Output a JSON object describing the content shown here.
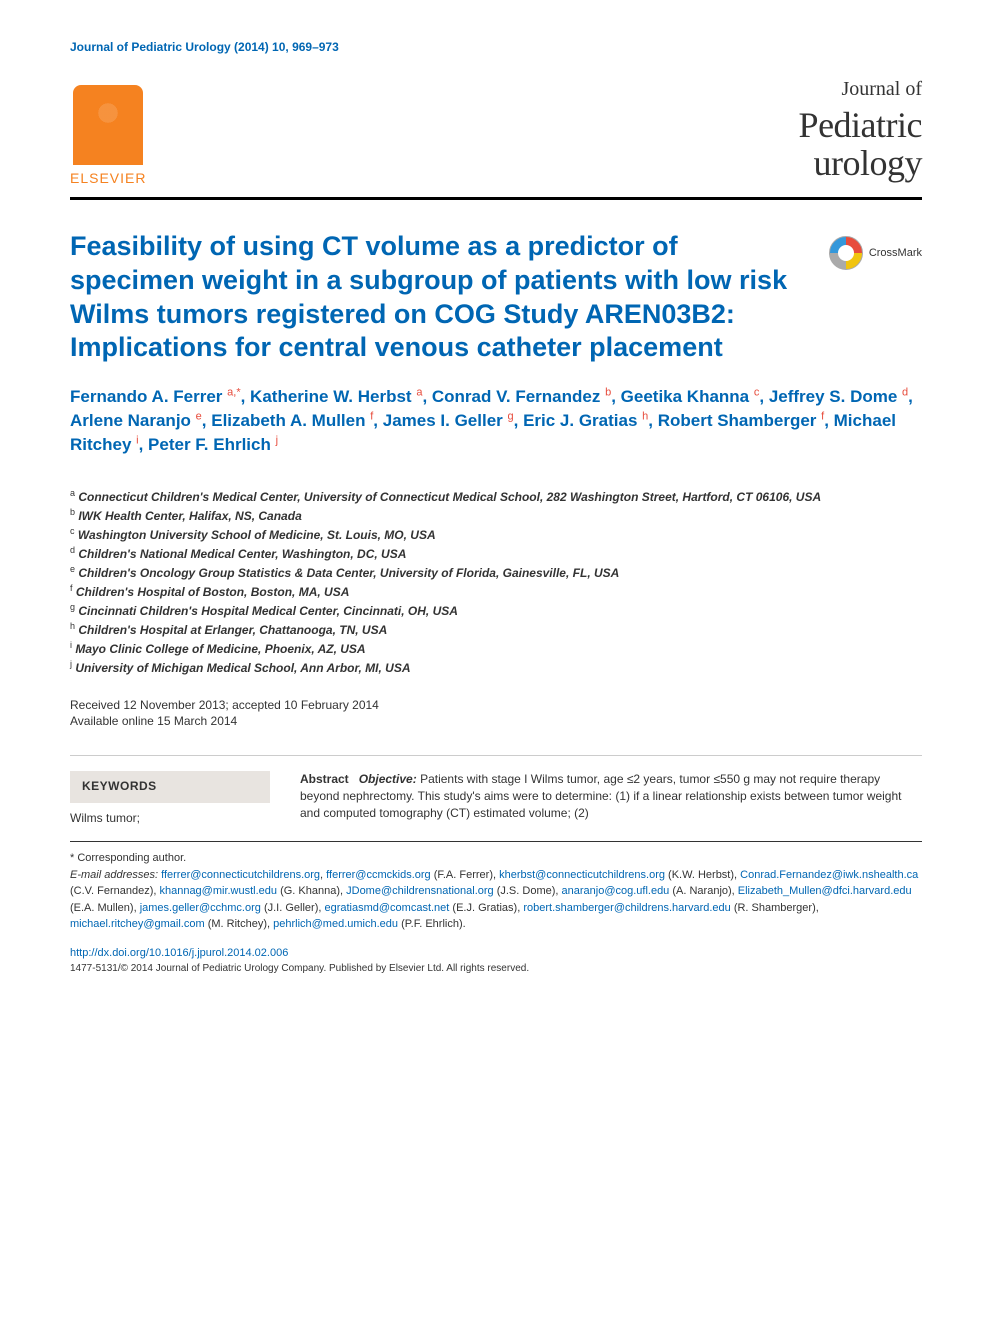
{
  "journal_ref": "Journal of Pediatric Urology (2014) 10, 969–973",
  "publisher": "ELSEVIER",
  "journal_title": {
    "line1": "Journal of",
    "line2": "Pediatric",
    "line3": "urology"
  },
  "crossmark": "CrossMark",
  "title": "Feasibility of using CT volume as a predictor of specimen weight in a subgroup of patients with low risk Wilms tumors registered on COG Study AREN03B2: Implications for central venous catheter placement",
  "authors_html": "Fernando A. Ferrer <sup>a,</sup><sup class=\"star\">*</sup>, Katherine W. Herbst <sup>a</sup>, Conrad V. Fernandez <sup>b</sup>, Geetika Khanna <sup>c</sup>, Jeffrey S. Dome <sup>d</sup>, Arlene Naranjo <sup>e</sup>, Elizabeth A. Mullen <sup>f</sup>, James I. Geller <sup>g</sup>, Eric J. Gratias <sup>h</sup>, Robert Shamberger <sup>f</sup>, Michael Ritchey <sup>i</sup>, Peter F. Ehrlich <sup>j</sup>",
  "affiliations": [
    {
      "key": "a",
      "text": "Connecticut Children's Medical Center, University of Connecticut Medical School, 282 Washington Street, Hartford, CT 06106, USA"
    },
    {
      "key": "b",
      "text": "IWK Health Center, Halifax, NS, Canada"
    },
    {
      "key": "c",
      "text": "Washington University School of Medicine, St. Louis, MO, USA"
    },
    {
      "key": "d",
      "text": "Children's National Medical Center, Washington, DC, USA"
    },
    {
      "key": "e",
      "text": "Children's Oncology Group Statistics & Data Center, University of Florida, Gainesville, FL, USA"
    },
    {
      "key": "f",
      "text": "Children's Hospital of Boston, Boston, MA, USA"
    },
    {
      "key": "g",
      "text": "Cincinnati Children's Hospital Medical Center, Cincinnati, OH, USA"
    },
    {
      "key": "h",
      "text": "Children's Hospital at Erlanger, Chattanooga, TN, USA"
    },
    {
      "key": "i",
      "text": "Mayo Clinic College of Medicine, Phoenix, AZ, USA"
    },
    {
      "key": "j",
      "text": "University of Michigan Medical School, Ann Arbor, MI, USA"
    }
  ],
  "dates": {
    "received_accepted": "Received 12 November 2013; accepted 10 February 2014",
    "online": "Available online 15 March 2014"
  },
  "keywords": {
    "header": "KEYWORDS",
    "body": "Wilms tumor;"
  },
  "abstract": {
    "label": "Abstract",
    "objective_label": "Objective:",
    "objective_text": "Patients with stage I Wilms tumor, age ≤2 years, tumor ≤550 g may not require therapy beyond nephrectomy. This study's aims were to determine: (1) if a linear relationship exists between tumor weight and computed tomography (CT) estimated volume; (2)"
  },
  "footnotes": {
    "corresponding": "* Corresponding author.",
    "emails_label": "E-mail addresses:",
    "emails": [
      {
        "addr": "fferrer@connecticutchildrens.org",
        "who": ""
      },
      {
        "addr": "fferrer@ccmckids.org",
        "who": "(F.A. Ferrer),"
      },
      {
        "addr": "kherbst@connecticutchildrens.org",
        "who": "(K.W. Herbst),"
      },
      {
        "addr": "Conrad.Fernandez@iwk.nshealth.ca",
        "who": "(C.V. Fernandez),"
      },
      {
        "addr": "khannag@mir.wustl.edu",
        "who": "(G. Khanna),"
      },
      {
        "addr": "JDome@childrensnational.org",
        "who": "(J.S. Dome),"
      },
      {
        "addr": "anaranjo@cog.ufl.edu",
        "who": "(A. Naranjo),"
      },
      {
        "addr": "Elizabeth_Mullen@dfci.harvard.edu",
        "who": "(E.A. Mullen),"
      },
      {
        "addr": "james.geller@cchmc.org",
        "who": "(J.I. Geller),"
      },
      {
        "addr": "egratiasmd@comcast.net",
        "who": "(E.J. Gratias),"
      },
      {
        "addr": "robert.shamberger@childrens.harvard.edu",
        "who": "(R. Shamberger),"
      },
      {
        "addr": "michael.ritchey@gmail.com",
        "who": "(M. Ritchey),"
      },
      {
        "addr": "pehrlich@med.umich.edu",
        "who": "(P.F. Ehrlich)."
      }
    ],
    "doi": "http://dx.doi.org/10.1016/j.jpurol.2014.02.006",
    "copyright": "1477-5131/© 2014 Journal of Pediatric Urology Company. Published by Elsevier Ltd. All rights reserved."
  },
  "colors": {
    "link_blue": "#0066b3",
    "orange": "#f58220",
    "red_sup": "#e74c3c",
    "keywords_bg": "#e8e4e0",
    "text": "#333333",
    "rule": "#000000"
  },
  "typography": {
    "body_size_pt": 10,
    "title_size_pt": 20,
    "authors_size_pt": 13,
    "journal_title_size_pt": 27
  }
}
